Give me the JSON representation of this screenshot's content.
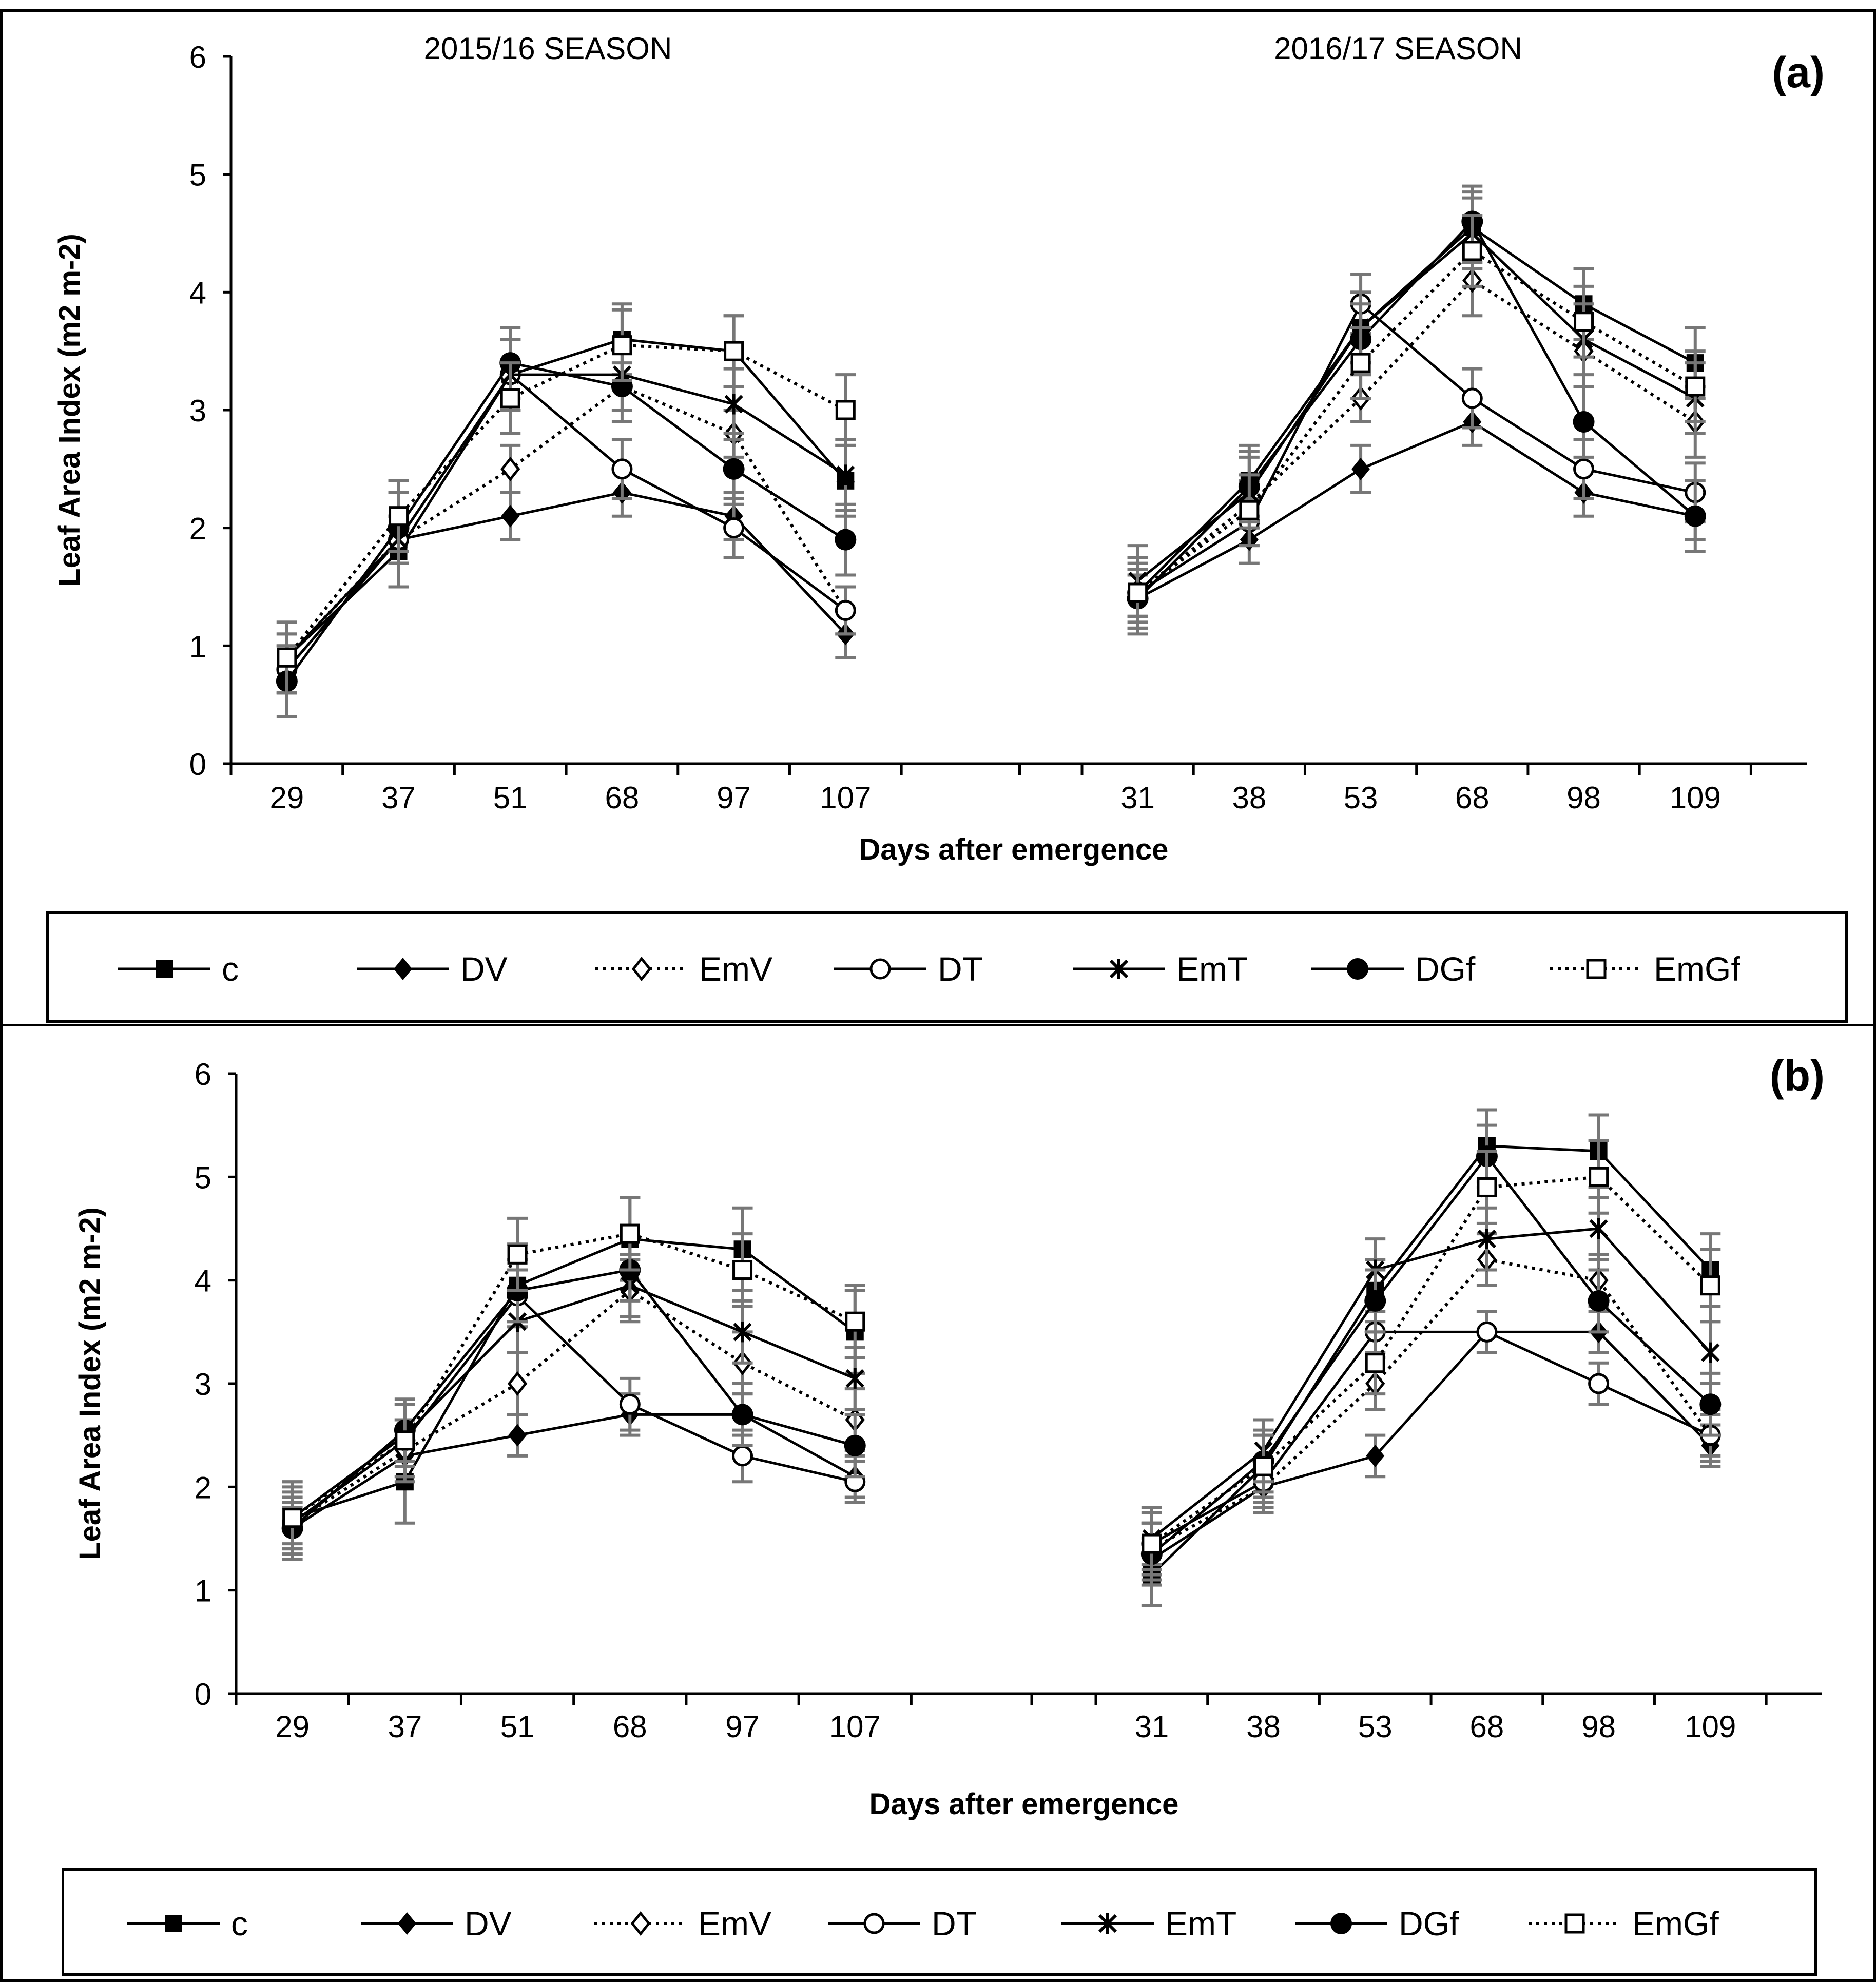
{
  "chart_data": [
    {
      "type": "line",
      "panel_label": "(a)",
      "ylabel": "Leaf Area Index (m2 m-2)",
      "xlabel": "Days after emergence",
      "ylim": [
        0,
        6
      ],
      "yticks": [
        "0",
        "1",
        "2",
        "3",
        "4",
        "5",
        "6"
      ],
      "seasons": [
        {
          "title": "2015/16 SEASON",
          "categories": [
            "29",
            "37",
            "51",
            "68",
            "97",
            "107"
          ],
          "series": [
            {
              "name": "c",
              "values": [
                0.9,
                1.8,
                3.3,
                3.6,
                3.5,
                2.4
              ],
              "errors": [
                0.3,
                0.3,
                0.3,
                0.3,
                0.3,
                0.3
              ]
            },
            {
              "name": "DV",
              "values": [
                0.8,
                1.9,
                2.1,
                2.3,
                2.1,
                1.1
              ],
              "errors": [
                0.2,
                0.2,
                0.2,
                0.2,
                0.2,
                0.2
              ]
            },
            {
              "name": "EmV",
              "values": [
                0.9,
                1.9,
                2.5,
                3.2,
                2.8,
                1.3
              ],
              "errors": [
                0.2,
                0.2,
                0.2,
                0.2,
                0.2,
                0.2
              ]
            },
            {
              "name": "DT",
              "values": [
                0.8,
                1.9,
                3.3,
                2.5,
                2.0,
                1.3
              ],
              "errors": [
                0.2,
                0.2,
                0.3,
                0.25,
                0.25,
                0.2
              ]
            },
            {
              "name": "EmT",
              "values": [
                0.9,
                1.9,
                3.3,
                3.3,
                3.05,
                2.45
              ],
              "errors": [
                0.2,
                0.2,
                0.3,
                0.3,
                0.3,
                0.3
              ]
            },
            {
              "name": "DGf",
              "values": [
                0.7,
                2.0,
                3.4,
                3.2,
                2.5,
                1.9
              ],
              "errors": [
                0.3,
                0.3,
                0.3,
                0.3,
                0.3,
                0.3
              ]
            },
            {
              "name": "EmGf",
              "values": [
                0.9,
                2.1,
                3.1,
                3.55,
                3.5,
                3.0
              ],
              "errors": [
                0.3,
                0.3,
                0.3,
                0.3,
                0.3,
                0.3
              ]
            }
          ]
        },
        {
          "title": "2016/17 SEASON",
          "categories": [
            "31",
            "38",
            "53",
            "68",
            "98",
            "109"
          ],
          "series": [
            {
              "name": "c",
              "values": [
                1.45,
                2.4,
                3.7,
                4.55,
                3.9,
                3.4
              ],
              "errors": [
                0.3,
                0.3,
                0.3,
                0.3,
                0.3,
                0.3
              ]
            },
            {
              "name": "DV",
              "values": [
                1.4,
                1.9,
                2.5,
                2.9,
                2.3,
                2.1
              ],
              "errors": [
                0.2,
                0.2,
                0.2,
                0.2,
                0.2,
                0.2
              ]
            },
            {
              "name": "EmV",
              "values": [
                1.45,
                2.2,
                3.1,
                4.1,
                3.5,
                2.9
              ],
              "errors": [
                0.2,
                0.2,
                0.2,
                0.3,
                0.3,
                0.3
              ]
            },
            {
              "name": "DT",
              "values": [
                1.45,
                2.05,
                3.9,
                3.1,
                2.5,
                2.3
              ],
              "errors": [
                0.2,
                0.2,
                0.25,
                0.25,
                0.25,
                0.25
              ]
            },
            {
              "name": "EmT",
              "values": [
                1.55,
                2.3,
                3.7,
                4.5,
                3.6,
                3.1
              ],
              "errors": [
                0.3,
                0.3,
                0.3,
                0.3,
                0.3,
                0.3
              ]
            },
            {
              "name": "DGf",
              "values": [
                1.4,
                2.35,
                3.6,
                4.6,
                2.9,
                2.1
              ],
              "errors": [
                0.3,
                0.3,
                0.3,
                0.3,
                0.3,
                0.3
              ]
            },
            {
              "name": "EmGf",
              "values": [
                1.45,
                2.15,
                3.4,
                4.35,
                3.75,
                3.2
              ],
              "errors": [
                0.3,
                0.3,
                0.3,
                0.3,
                0.3,
                0.3
              ]
            }
          ]
        }
      ]
    },
    {
      "type": "line",
      "panel_label": "(b)",
      "ylabel": "Leaf Area Index (m2 m-2)",
      "xlabel": "Days after emergence",
      "ylim": [
        0,
        6
      ],
      "yticks": [
        "0",
        "1",
        "2",
        "3",
        "4",
        "5",
        "6"
      ],
      "seasons": [
        {
          "title": "",
          "categories": [
            "29",
            "37",
            "51",
            "68",
            "97",
            "107"
          ],
          "series": [
            {
              "name": "c",
              "values": [
                1.7,
                2.05,
                3.95,
                4.4,
                4.3,
                3.5
              ],
              "errors": [
                0.35,
                0.4,
                0.4,
                0.4,
                0.4,
                0.4
              ]
            },
            {
              "name": "DV",
              "values": [
                1.6,
                2.3,
                2.5,
                2.7,
                2.7,
                2.1
              ],
              "errors": [
                0.2,
                0.2,
                0.2,
                0.2,
                0.2,
                0.2
              ]
            },
            {
              "name": "EmV",
              "values": [
                1.65,
                2.35,
                3.0,
                3.9,
                3.2,
                2.65
              ],
              "errors": [
                0.3,
                0.3,
                0.3,
                0.3,
                0.3,
                0.3
              ]
            },
            {
              "name": "DT",
              "values": [
                1.65,
                2.45,
                3.85,
                2.8,
                2.3,
                2.05
              ],
              "errors": [
                0.2,
                0.2,
                0.25,
                0.25,
                0.25,
                0.2
              ]
            },
            {
              "name": "EmT",
              "values": [
                1.7,
                2.5,
                3.6,
                3.95,
                3.5,
                3.05
              ],
              "errors": [
                0.3,
                0.3,
                0.3,
                0.3,
                0.3,
                0.3
              ]
            },
            {
              "name": "DGf",
              "values": [
                1.6,
                2.55,
                3.9,
                4.1,
                2.7,
                2.4
              ],
              "errors": [
                0.3,
                0.3,
                0.3,
                0.3,
                0.3,
                0.3
              ]
            },
            {
              "name": "EmGf",
              "values": [
                1.7,
                2.45,
                4.25,
                4.45,
                4.1,
                3.6
              ],
              "errors": [
                0.35,
                0.35,
                0.35,
                0.35,
                0.35,
                0.35
              ]
            }
          ]
        },
        {
          "title": "",
          "categories": [
            "31",
            "38",
            "53",
            "68",
            "98",
            "109"
          ],
          "series": [
            {
              "name": "c",
              "values": [
                1.15,
                2.2,
                3.9,
                5.3,
                5.25,
                4.1
              ],
              "errors": [
                0.3,
                0.3,
                0.3,
                0.35,
                0.35,
                0.35
              ]
            },
            {
              "name": "DV",
              "values": [
                1.3,
                2.0,
                2.3,
                3.5,
                3.5,
                2.4
              ],
              "errors": [
                0.2,
                0.2,
                0.2,
                0.2,
                0.2,
                0.2
              ]
            },
            {
              "name": "EmV",
              "values": [
                1.4,
                2.0,
                3.0,
                4.2,
                4.0,
                2.5
              ],
              "errors": [
                0.25,
                0.25,
                0.25,
                0.25,
                0.25,
                0.25
              ]
            },
            {
              "name": "DT",
              "values": [
                1.45,
                2.05,
                3.5,
                3.5,
                3.0,
                2.5
              ],
              "errors": [
                0.2,
                0.2,
                0.2,
                0.2,
                0.2,
                0.2
              ]
            },
            {
              "name": "EmT",
              "values": [
                1.5,
                2.35,
                4.1,
                4.4,
                4.5,
                3.3
              ],
              "errors": [
                0.3,
                0.3,
                0.3,
                0.3,
                0.3,
                0.3
              ]
            },
            {
              "name": "DGf",
              "values": [
                1.35,
                2.25,
                3.8,
                5.2,
                3.8,
                2.8
              ],
              "errors": [
                0.3,
                0.3,
                0.3,
                0.3,
                0.3,
                0.3
              ]
            },
            {
              "name": "EmGf",
              "values": [
                1.45,
                2.2,
                3.2,
                4.9,
                5.0,
                3.95
              ],
              "errors": [
                0.3,
                0.3,
                0.3,
                0.35,
                0.35,
                0.35
              ]
            }
          ]
        }
      ]
    }
  ],
  "legend": [
    {
      "name": "c",
      "marker": "filled-square",
      "dash": "solid"
    },
    {
      "name": "DV",
      "marker": "filled-diamond",
      "dash": "solid"
    },
    {
      "name": "EmV",
      "marker": "open-diamond",
      "dash": "dotted"
    },
    {
      "name": "DT",
      "marker": "open-circle",
      "dash": "solid"
    },
    {
      "name": "EmT",
      "marker": "star-cross",
      "dash": "solid"
    },
    {
      "name": "DGf",
      "marker": "filled-circle",
      "dash": "solid"
    },
    {
      "name": "EmGf",
      "marker": "open-square",
      "dash": "dotted"
    }
  ],
  "colors": {
    "line": "#000000",
    "error_bar": "#777777",
    "background": "#ffffff"
  }
}
